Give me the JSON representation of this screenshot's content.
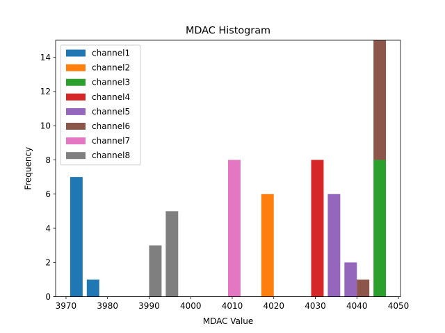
{
  "chart_data": {
    "type": "bar",
    "title": "MDAC Histogram",
    "xlabel": "MDAC Value",
    "ylabel": "Frequency",
    "xlim": [
      3967.5,
      4050.5
    ],
    "ylim": [
      0,
      15
    ],
    "xticks": [
      3970,
      3980,
      3990,
      4000,
      4010,
      4020,
      4030,
      4040,
      4050
    ],
    "yticks": [
      0,
      2,
      4,
      6,
      8,
      10,
      12,
      14
    ],
    "bar_width": 3.0,
    "legend_position": "top-left",
    "series": [
      {
        "name": "channel1",
        "color": "#1f77b4",
        "bars": [
          {
            "x": 3972.5,
            "value": 7,
            "base": 0
          },
          {
            "x": 3976.5,
            "value": 1,
            "base": 0
          }
        ]
      },
      {
        "name": "channel2",
        "color": "#ff7f0e",
        "bars": [
          {
            "x": 4018.5,
            "value": 6,
            "base": 0
          }
        ]
      },
      {
        "name": "channel3",
        "color": "#2ca02c",
        "bars": [
          {
            "x": 4045.5,
            "value": 8,
            "base": 0
          }
        ]
      },
      {
        "name": "channel4",
        "color": "#d62728",
        "bars": [
          {
            "x": 4030.5,
            "value": 8,
            "base": 0
          }
        ]
      },
      {
        "name": "channel5",
        "color": "#9467bd",
        "bars": [
          {
            "x": 4034.5,
            "value": 6,
            "base": 0
          },
          {
            "x": 4038.5,
            "value": 2,
            "base": 0
          }
        ]
      },
      {
        "name": "channel6",
        "color": "#8c564b",
        "bars": [
          {
            "x": 4041.5,
            "value": 1,
            "base": 0
          },
          {
            "x": 4045.5,
            "value": 7,
            "base": 8
          }
        ]
      },
      {
        "name": "channel7",
        "color": "#e377c2",
        "bars": [
          {
            "x": 4010.5,
            "value": 8,
            "base": 0
          }
        ]
      },
      {
        "name": "channel8",
        "color": "#7f7f7f",
        "bars": [
          {
            "x": 3991.5,
            "value": 3,
            "base": 0
          },
          {
            "x": 3995.5,
            "value": 5,
            "base": 0
          }
        ]
      }
    ]
  }
}
